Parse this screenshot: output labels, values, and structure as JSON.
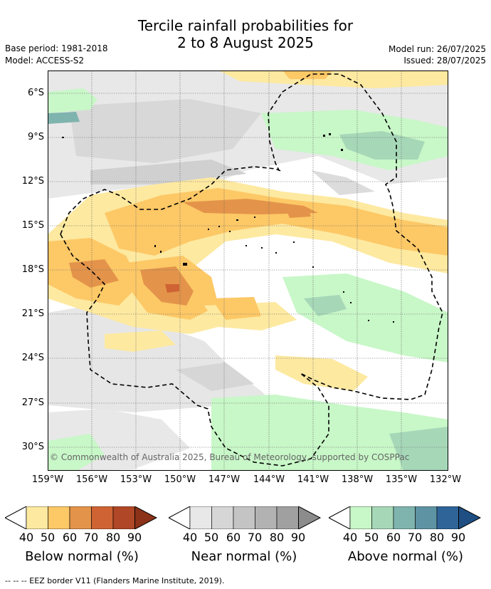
{
  "title": {
    "line1": "Tercile rainfall probabilities for",
    "line2": "2 to 8 August 2025"
  },
  "meta": {
    "base_period": "Base period: 1981-2018",
    "model": "Model: ACCESS-S2",
    "model_run": "Model run: 26/07/2025",
    "issued": "Issued: 28/07/2025"
  },
  "map": {
    "lat_labels": [
      "6°S",
      "9°S",
      "12°S",
      "15°S",
      "18°S",
      "21°S",
      "24°S",
      "27°S",
      "30°S"
    ],
    "lon_labels": [
      "159°W",
      "156°W",
      "153°W",
      "150°W",
      "147°W",
      "144°W",
      "141°W",
      "138°W",
      "135°W",
      "132°W"
    ],
    "credit": "© Commonwealth of Australia 2025, Bureau of Meteorology, supported by COSPPac"
  },
  "colorbars": [
    {
      "title": "Below normal (%)",
      "ticks": [
        "40",
        "50",
        "60",
        "70",
        "80",
        "90"
      ],
      "colors": [
        "#fde9a0",
        "#fdc866",
        "#e3944a",
        "#cf6334",
        "#b04726",
        "#8b3218"
      ]
    },
    {
      "title": "Near normal (%)",
      "ticks": [
        "40",
        "50",
        "60",
        "70",
        "80",
        "90"
      ],
      "colors": [
        "#e8e8e8",
        "#d6d6d6",
        "#c4c4c4",
        "#b2b2b2",
        "#a0a0a0",
        "#8c8c8c"
      ]
    },
    {
      "title": "Above normal (%)",
      "ticks": [
        "40",
        "50",
        "60",
        "70",
        "80",
        "90"
      ],
      "colors": [
        "#c8f7c8",
        "#a6d8b8",
        "#7fb4ae",
        "#5e93a3",
        "#2f6498",
        "#1f4f82"
      ]
    }
  ],
  "footer": "--  --  -- EEZ border V11 (Flanders Marine Institute, 2019)."
}
